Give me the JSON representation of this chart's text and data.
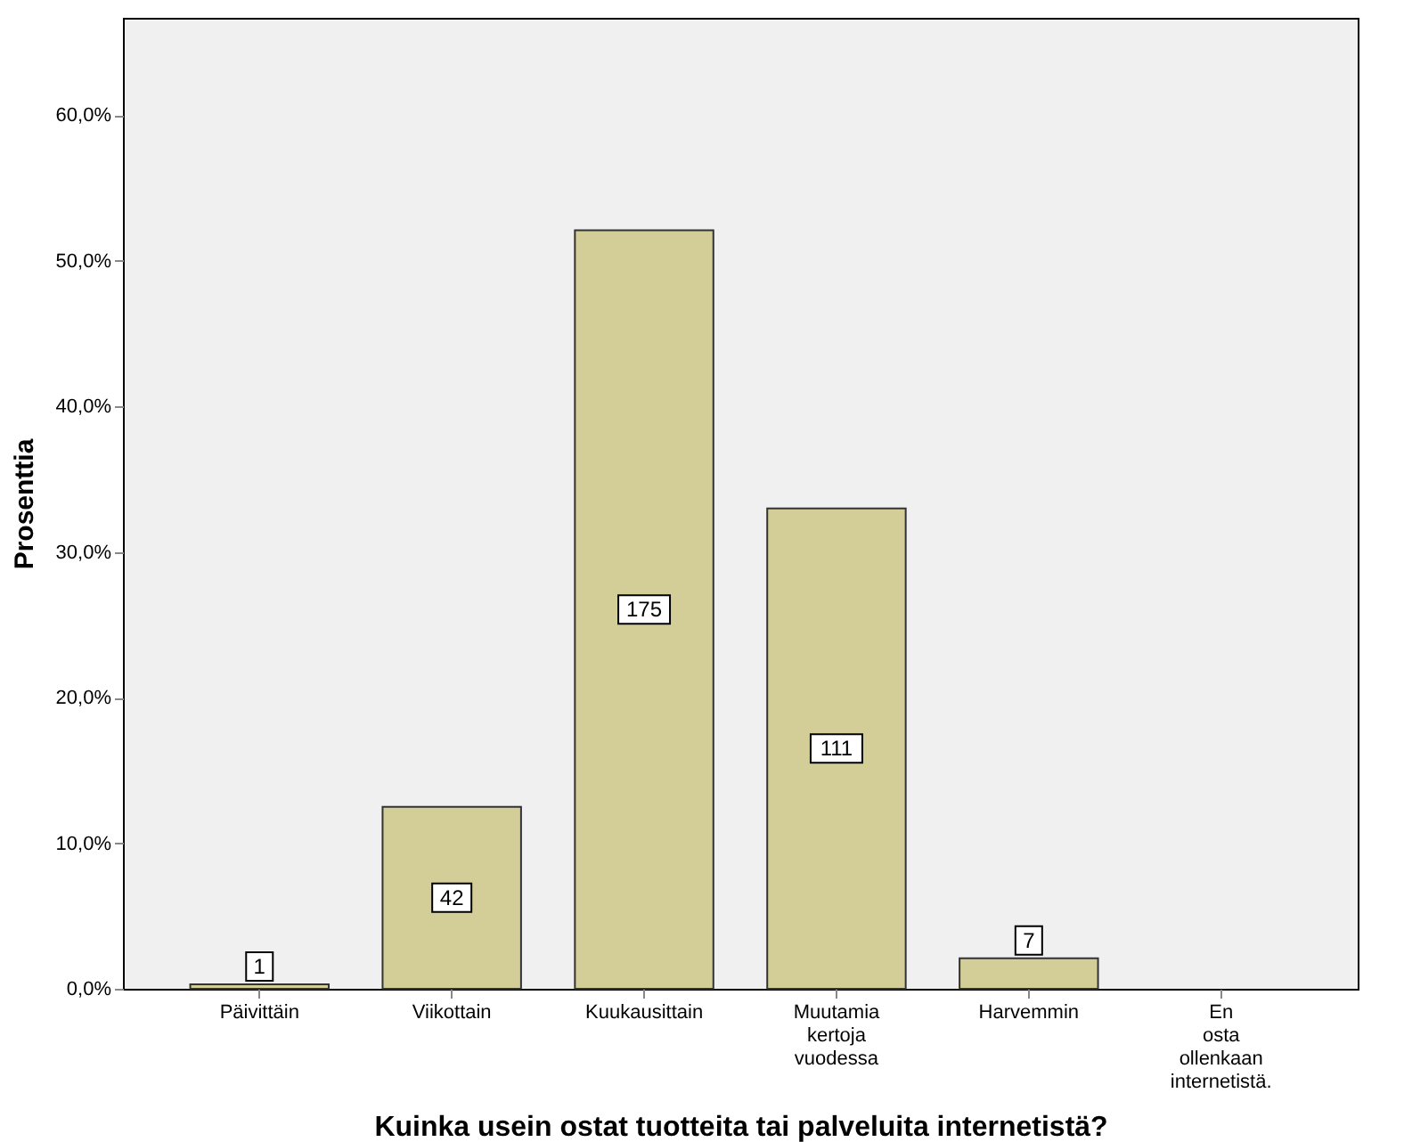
{
  "chart_data": {
    "type": "bar",
    "xlabel": "Kuinka usein ostat tuotteita tai palveluita internetistä?",
    "ylabel": "Prosenttia",
    "categories": [
      "Päivittäin",
      "Viikottain",
      "Kuukausittain",
      "Muutamia kertoja vuodessa",
      "Harvemmin",
      "En osta ollenkaan internetistä."
    ],
    "values": [
      0.3,
      12.5,
      52.1,
      33.0,
      2.1,
      0
    ],
    "color": "#d3ce97",
    "ylim": [
      0,
      66.7
    ],
    "yticks": [
      {
        "value": 0,
        "label": "0,0%"
      },
      {
        "value": 10,
        "label": "10,0%"
      },
      {
        "value": 20,
        "label": "20,0%"
      },
      {
        "value": 30,
        "label": "30,0%"
      },
      {
        "value": 40,
        "label": "40,0%"
      },
      {
        "value": 50,
        "label": "50,0%"
      },
      {
        "value": 60,
        "label": "60,0%"
      }
    ],
    "annotations": [
      "1",
      "42",
      "175",
      "111",
      "7"
    ],
    "grid": false
  }
}
